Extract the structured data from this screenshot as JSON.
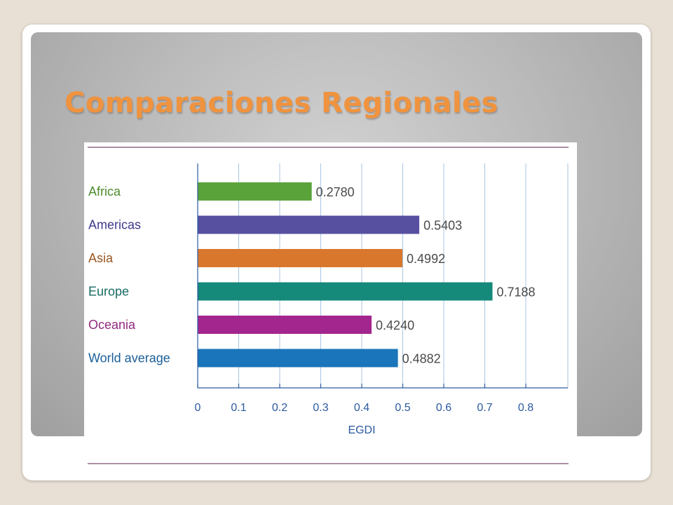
{
  "slide": {
    "title": "Comparaciones Regionales"
  },
  "colors": {
    "title": "#f0933f",
    "rule": "#7a4a70",
    "grid": "#a9c6e2",
    "axis": "#2c5aa0",
    "tick_label": "#2c5aa0"
  },
  "chart_data": {
    "type": "bar",
    "orientation": "horizontal",
    "categories": [
      "Africa",
      "Americas",
      "Asia",
      "Europe",
      "Oceania",
      "World average"
    ],
    "values": [
      0.278,
      0.5403,
      0.4992,
      0.7188,
      0.424,
      0.4882
    ],
    "value_labels": [
      "0.2780",
      "0.5403",
      "0.4992",
      "0.7188",
      "0.4240",
      "0.4882"
    ],
    "bar_colors": [
      "#5aa33a",
      "#5750a0",
      "#d9772d",
      "#15897a",
      "#a3258e",
      "#1a75ba"
    ],
    "label_colors": [
      "#4e8c2f",
      "#3f3a8c",
      "#9a5620",
      "#176a62",
      "#8f2a7d",
      "#1a5e98"
    ],
    "xlabel": "EGDI",
    "xlim": [
      0,
      0.9
    ],
    "xticks": [
      0,
      0.1,
      0.2,
      0.3,
      0.4,
      0.5,
      0.6,
      0.7,
      0.8
    ],
    "xtick_labels": [
      "0",
      "0.1",
      "0.2",
      "0.3",
      "0.4",
      "0.5",
      "0.6",
      "0.7",
      "0.8"
    ],
    "grid": true
  }
}
